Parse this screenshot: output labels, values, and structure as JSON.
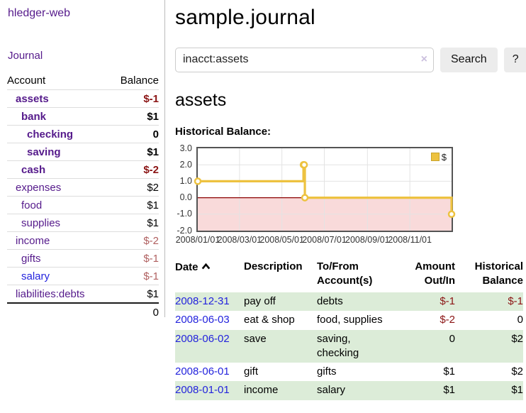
{
  "app": {
    "title": "hledger-web",
    "nav_journal": "Journal"
  },
  "sidebar": {
    "columns": {
      "account": "Account",
      "balance": "Balance"
    },
    "accounts": [
      {
        "name": "assets",
        "balance": "$-1",
        "indent": 1,
        "bold": true,
        "negative": "strong"
      },
      {
        "name": "bank",
        "balance": "$1",
        "indent": 2,
        "bold": true,
        "negative": null
      },
      {
        "name": "checking",
        "balance": "0",
        "indent": 3,
        "bold": true,
        "negative": null
      },
      {
        "name": "saving",
        "balance": "$1",
        "indent": 3,
        "bold": true,
        "negative": null
      },
      {
        "name": "cash",
        "balance": "$-2",
        "indent": 2,
        "bold": true,
        "negative": "strong"
      },
      {
        "name": "expenses",
        "balance": "$2",
        "indent": 1,
        "bold": false,
        "negative": null
      },
      {
        "name": "food",
        "balance": "$1",
        "indent": 2,
        "bold": false,
        "negative": null
      },
      {
        "name": "supplies",
        "balance": "$1",
        "indent": 2,
        "bold": false,
        "negative": null
      },
      {
        "name": "income",
        "balance": "$-2",
        "indent": 1,
        "bold": false,
        "negative": "soft"
      },
      {
        "name": "gifts",
        "balance": "$-1",
        "indent": 2,
        "bold": false,
        "negative": "soft"
      },
      {
        "name": "salary",
        "balance": "$-1",
        "indent": 2,
        "bold": false,
        "negative": "soft"
      },
      {
        "name": "liabilities:debts",
        "balance": "$1",
        "indent": 1,
        "bold": false,
        "negative": null
      }
    ],
    "total": "0"
  },
  "header": {
    "title": "sample.journal"
  },
  "search": {
    "value": "inacct:assets",
    "clear_icon": "×",
    "button": "Search",
    "help_button": "?"
  },
  "account_page": {
    "heading": "assets",
    "chart_label": "Historical Balance:"
  },
  "chart_data": {
    "type": "line",
    "step": true,
    "title": "Historical Balance",
    "series": [
      {
        "name": "$",
        "color": "#edc240",
        "points": [
          [
            "2008-01-01",
            1
          ],
          [
            "2008-06-01",
            2
          ],
          [
            "2008-06-02",
            2
          ],
          [
            "2008-06-03",
            0
          ],
          [
            "2008-12-31",
            -1
          ]
        ]
      }
    ],
    "xrange": [
      "2008-01-01",
      "2008-12-31"
    ],
    "ylim": [
      -2,
      3
    ],
    "yticks": [
      3,
      2,
      1,
      0,
      -1,
      -2
    ],
    "ytick_labels": [
      "3.0",
      "2.0",
      "1.0",
      "0.0",
      "-1.0",
      "-2.0"
    ],
    "xticks": [
      "2008/01/01",
      "2008/03/01",
      "2008/05/01",
      "2008/07/01",
      "2008/09/01",
      "2008/11/01"
    ],
    "legend": {
      "label": "$",
      "position": "top-right"
    },
    "grid": true,
    "grid_color": "#e3e3e3",
    "zero_line_color": "#8b0000",
    "negative_fill": "#f9dada",
    "point_fill": "#ffffff",
    "border_color": "#545454"
  },
  "register": {
    "headers": {
      "date": "Date",
      "description": "Description",
      "tofrom1": "To/From",
      "tofrom2": "Account(s)",
      "amount1": "Amount",
      "amount2": "Out/In",
      "balance1": "Historical",
      "balance2": "Balance"
    },
    "rows": [
      {
        "date": "2008-12-31",
        "description": "pay off",
        "accounts": "debts",
        "amount": "$-1",
        "balance": "$-1"
      },
      {
        "date": "2008-06-03",
        "description": "eat & shop",
        "accounts": "food, supplies",
        "amount": "$-2",
        "balance": "0"
      },
      {
        "date": "2008-06-02",
        "description": "save",
        "accounts": "saving, checking",
        "amount": "0",
        "balance": "$2"
      },
      {
        "date": "2008-06-01",
        "description": "gift",
        "accounts": "gifts",
        "amount": "$1",
        "balance": "$2"
      },
      {
        "date": "2008-01-01",
        "description": "income",
        "accounts": "salary",
        "amount": "$1",
        "balance": "$1"
      }
    ]
  },
  "colors": {
    "link_purple": "#551a8b",
    "link_blue": "#2323dd",
    "negative_strong": "#8b1414",
    "negative_soft": "#b06060",
    "row_stripe_green": "#dcecd8",
    "button_bg": "#ececec",
    "series_gold": "#edc240"
  }
}
